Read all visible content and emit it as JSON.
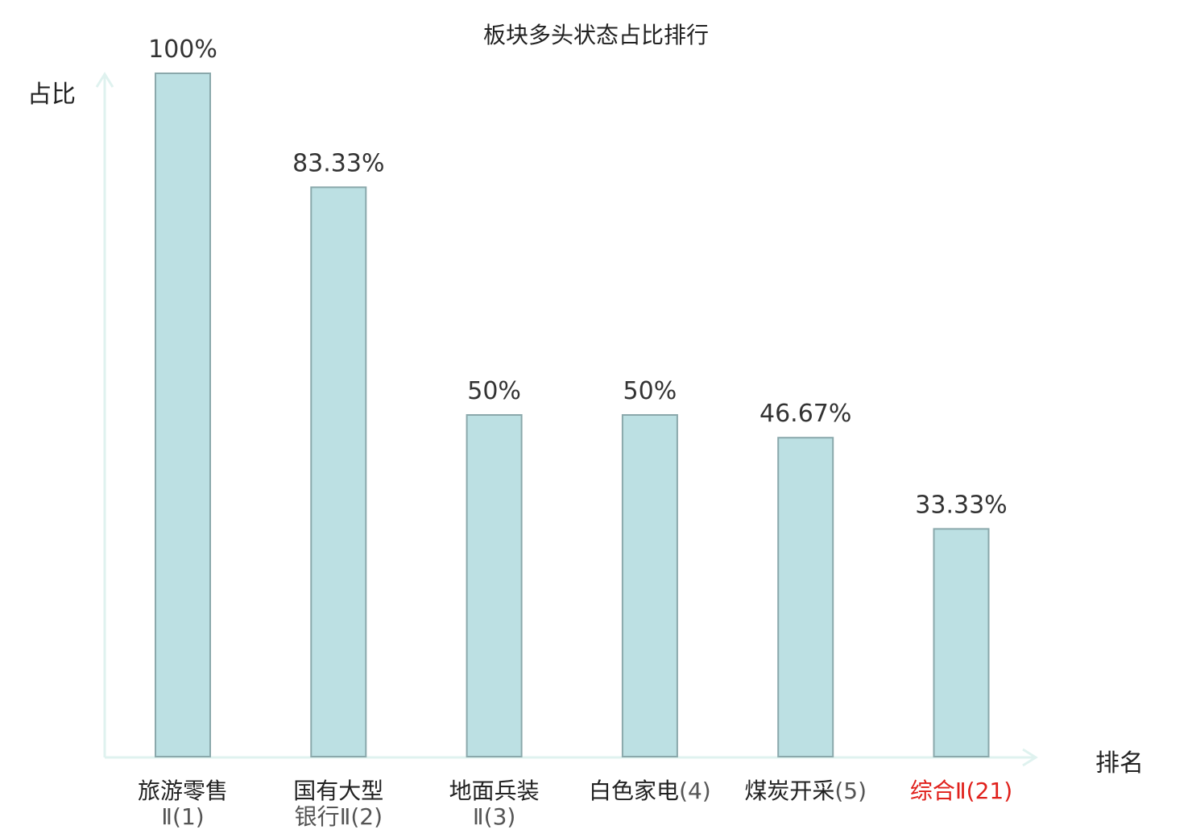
{
  "chart_data": {
    "type": "bar",
    "title": "板块多头状态占比排行",
    "ylabel": "占比",
    "xlabel": "排名",
    "ylim": [
      0,
      100
    ],
    "grid": false,
    "categories": [
      {
        "name": "旅游零售",
        "rank": "Ⅱ(1)",
        "highlight": false
      },
      {
        "name": "国有大型",
        "rank": "银行Ⅱ(2)",
        "highlight": false
      },
      {
        "name": "地面兵装",
        "rank": "Ⅱ(3)",
        "highlight": false
      },
      {
        "name": "白色家电",
        "rank": "(4)",
        "highlight": false
      },
      {
        "name": "煤炭开采",
        "rank": "(5)",
        "highlight": false
      },
      {
        "name": "综合",
        "rank": "Ⅱ(21)",
        "highlight": true
      }
    ],
    "values": [
      100,
      83.33,
      50,
      50,
      46.67,
      33.33
    ],
    "value_labels": [
      "100%",
      "83.33%",
      "50%",
      "50%",
      "46.67%",
      "33.33%"
    ]
  },
  "colors": {
    "bar_fill": "#bce0e3",
    "bar_stroke": "#8aa8ab",
    "axis": "#dff2ef",
    "highlight": "#e0201b",
    "text": "#222222"
  }
}
